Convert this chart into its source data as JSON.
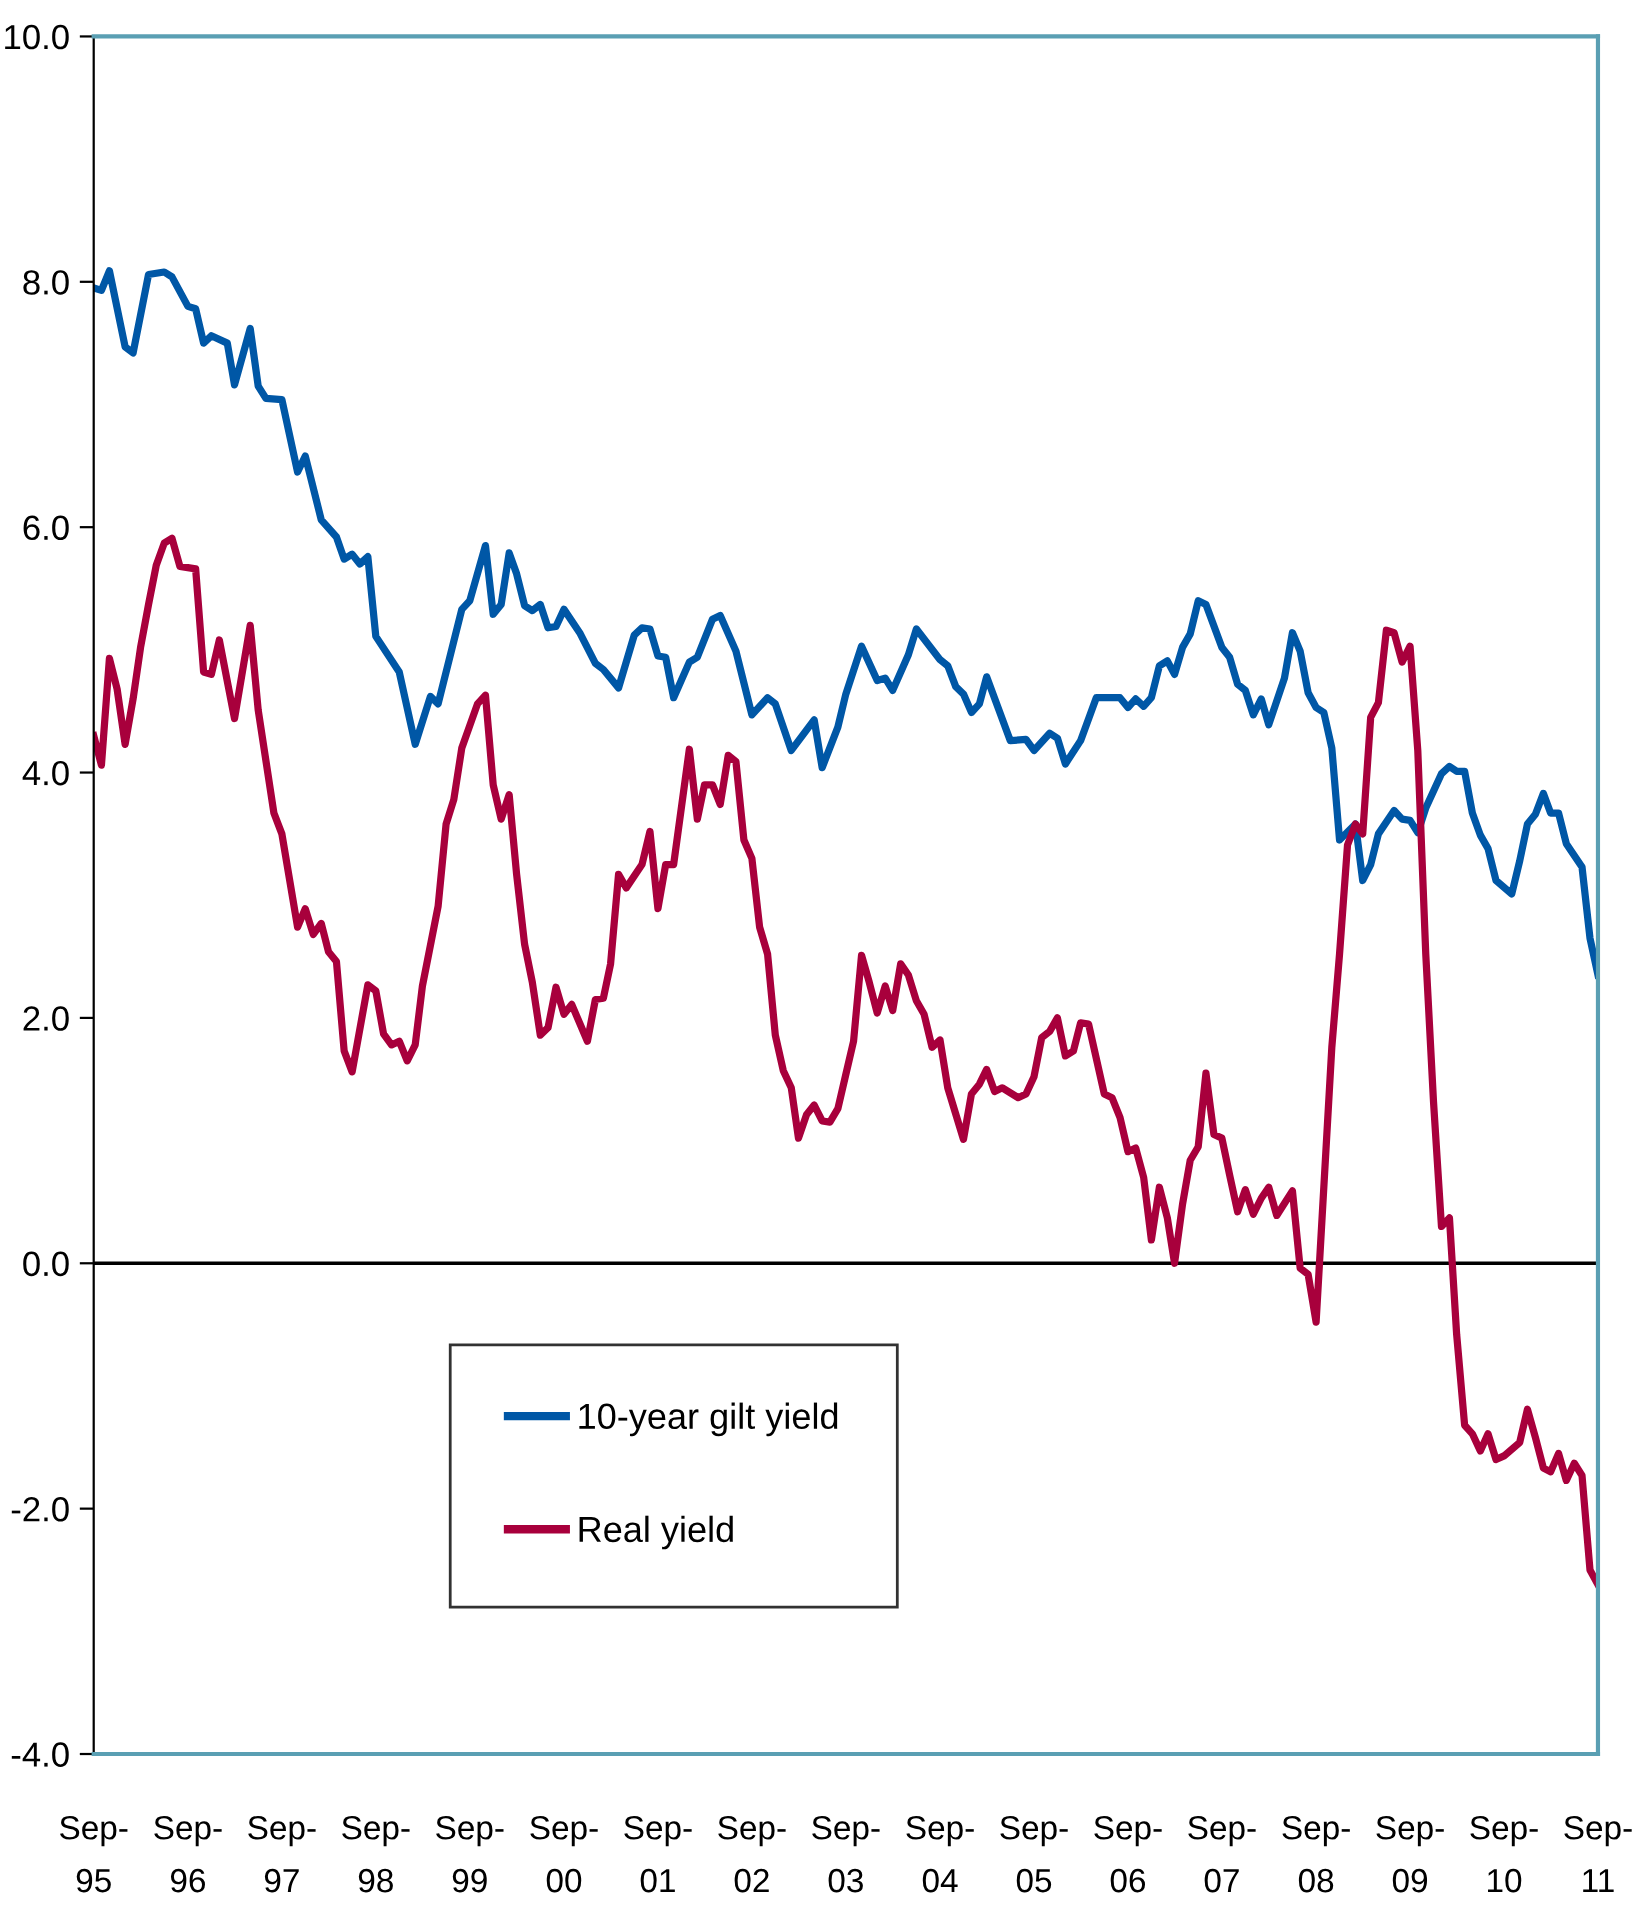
{
  "chart_data": {
    "type": "line",
    "series": [
      {
        "name": "10-year gilt yield",
        "color": "#0057a6",
        "x": [
          "1995-09",
          "1995-10",
          "1995-11",
          "1996-01",
          "1996-02",
          "1996-04",
          "1996-06",
          "1996-07",
          "1996-09",
          "1996-10",
          "1996-11",
          "1996-12",
          "1997-02",
          "1997-03",
          "1997-05",
          "1997-06",
          "1997-07",
          "1997-09",
          "1997-11",
          "1997-12",
          "1998-02",
          "1998-04",
          "1998-05",
          "1998-06",
          "1998-07",
          "1998-08",
          "1998-09",
          "1998-12",
          "1999-02",
          "1999-04",
          "1999-05",
          "1999-08",
          "1999-09",
          "1999-11",
          "1999-12",
          "2000-01",
          "2000-02",
          "2000-03",
          "2000-04",
          "2000-05",
          "2000-06",
          "2000-07",
          "2000-08",
          "2000-09",
          "2000-11",
          "2001-01",
          "2001-02",
          "2001-04",
          "2001-06",
          "2001-07",
          "2001-08",
          "2001-09",
          "2001-10",
          "2001-11",
          "2002-01",
          "2002-02",
          "2002-04",
          "2002-05",
          "2002-07",
          "2002-09",
          "2002-11",
          "2002-12",
          "2003-02",
          "2003-05",
          "2003-06",
          "2003-08",
          "2003-09",
          "2003-11",
          "2004-01",
          "2004-02",
          "2004-03",
          "2004-05",
          "2004-06",
          "2004-09",
          "2004-10",
          "2004-11",
          "2004-12",
          "2005-01",
          "2005-02",
          "2005-03",
          "2005-06",
          "2005-08",
          "2005-09",
          "2005-11",
          "2005-12",
          "2006-01",
          "2006-03",
          "2006-05",
          "2006-08",
          "2006-09",
          "2006-10",
          "2006-11",
          "2006-12",
          "2007-01",
          "2007-02",
          "2007-03",
          "2007-04",
          "2007-05",
          "2007-06",
          "2007-07",
          "2007-09",
          "2007-10",
          "2007-11",
          "2007-12",
          "2008-01",
          "2008-02",
          "2008-03",
          "2008-05",
          "2008-06",
          "2008-07",
          "2008-08",
          "2008-09",
          "2008-10",
          "2008-11",
          "2008-12",
          "2009-02",
          "2009-03",
          "2009-04",
          "2009-05",
          "2009-07",
          "2009-08",
          "2009-09",
          "2009-10",
          "2009-11",
          "2010-01",
          "2010-02",
          "2010-03",
          "2010-04",
          "2010-05",
          "2010-06",
          "2010-07",
          "2010-08",
          "2010-10",
          "2010-11",
          "2010-12",
          "2011-01",
          "2011-02",
          "2011-03",
          "2011-04",
          "2011-05",
          "2011-07",
          "2011-08",
          "2011-09"
        ],
        "values": [
          7.95,
          7.93,
          8.09,
          7.47,
          7.42,
          8.06,
          8.08,
          8.04,
          7.8,
          7.78,
          7.5,
          7.56,
          7.5,
          7.16,
          7.62,
          7.15,
          7.05,
          7.04,
          6.45,
          6.58,
          6.06,
          5.92,
          5.74,
          5.78,
          5.7,
          5.76,
          5.11,
          4.82,
          4.23,
          4.62,
          4.56,
          5.33,
          5.4,
          5.85,
          5.29,
          5.37,
          5.79,
          5.62,
          5.36,
          5.32,
          5.37,
          5.18,
          5.19,
          5.33,
          5.14,
          4.89,
          4.84,
          4.69,
          5.12,
          5.18,
          5.17,
          4.95,
          4.94,
          4.61,
          4.9,
          4.94,
          5.25,
          5.28,
          4.99,
          4.47,
          4.61,
          4.56,
          4.18,
          4.43,
          4.04,
          4.37,
          4.64,
          5.03,
          4.75,
          4.77,
          4.67,
          4.96,
          5.17,
          4.92,
          4.87,
          4.7,
          4.64,
          4.49,
          4.56,
          4.78,
          4.26,
          4.27,
          4.18,
          4.32,
          4.28,
          4.07,
          4.26,
          4.61,
          4.61,
          4.53,
          4.6,
          4.54,
          4.61,
          4.87,
          4.91,
          4.8,
          5.02,
          5.13,
          5.4,
          5.37,
          5.02,
          4.94,
          4.72,
          4.67,
          4.47,
          4.6,
          4.39,
          4.77,
          5.14,
          4.99,
          4.65,
          4.53,
          4.49,
          4.2,
          3.45,
          3.58,
          3.12,
          3.25,
          3.5,
          3.69,
          3.62,
          3.61,
          3.51,
          3.71,
          3.99,
          4.05,
          4.01,
          4.01,
          3.67,
          3.49,
          3.38,
          3.12,
          3.01,
          3.28,
          3.58,
          3.66,
          3.83,
          3.67,
          3.67,
          3.42,
          3.23,
          2.65,
          2.35
        ]
      },
      {
        "name": "Real yield",
        "color": "#a8003c",
        "x": [
          "1995-09",
          "1995-10",
          "1995-11",
          "1995-12",
          "1996-01",
          "1996-02",
          "1996-03",
          "1996-04",
          "1996-05",
          "1996-06",
          "1996-07",
          "1996-08",
          "1996-10",
          "1996-11",
          "1996-12",
          "1997-01",
          "1997-03",
          "1997-05",
          "1997-06",
          "1997-08",
          "1997-09",
          "1997-11",
          "1997-12",
          "1998-01",
          "1998-02",
          "1998-03",
          "1998-04",
          "1998-05",
          "1998-06",
          "1998-08",
          "1998-09",
          "1998-10",
          "1998-11",
          "1998-12",
          "1999-01",
          "1999-02",
          "1999-03",
          "1999-05",
          "1999-06",
          "1999-07",
          "1999-08",
          "1999-10",
          "1999-11",
          "1999-12",
          "2000-01",
          "2000-02",
          "2000-03",
          "2000-04",
          "2000-05",
          "2000-06",
          "2000-07",
          "2000-08",
          "2000-09",
          "2000-10",
          "2000-12",
          "2001-01",
          "2001-02",
          "2001-03",
          "2001-04",
          "2001-05",
          "2001-07",
          "2001-08",
          "2001-09",
          "2001-10",
          "2001-11",
          "2002-01",
          "2002-02",
          "2002-03",
          "2002-04",
          "2002-05",
          "2002-06",
          "2002-07",
          "2002-08",
          "2002-09",
          "2002-10",
          "2002-11",
          "2002-12",
          "2003-01",
          "2003-02",
          "2003-03",
          "2003-04",
          "2003-05",
          "2003-06",
          "2003-07",
          "2003-08",
          "2003-09",
          "2003-10",
          "2003-11",
          "2003-12",
          "2004-01",
          "2004-02",
          "2004-03",
          "2004-04",
          "2004-05",
          "2004-06",
          "2004-07",
          "2004-08",
          "2004-09",
          "2004-10",
          "2004-12",
          "2005-01",
          "2005-02",
          "2005-03",
          "2005-04",
          "2005-05",
          "2005-07",
          "2005-08",
          "2005-09",
          "2005-10",
          "2005-11",
          "2005-12",
          "2006-01",
          "2006-02",
          "2006-03",
          "2006-04",
          "2006-06",
          "2006-07",
          "2006-08",
          "2006-09",
          "2006-10",
          "2006-11",
          "2006-12",
          "2007-01",
          "2007-02",
          "2007-03",
          "2007-04",
          "2007-05",
          "2007-06",
          "2007-07",
          "2007-08",
          "2007-09",
          "2007-10",
          "2007-11",
          "2007-12",
          "2008-01",
          "2008-02",
          "2008-03",
          "2008-04",
          "2008-06",
          "2008-07",
          "2008-08",
          "2008-09",
          "2008-11",
          "2008-12",
          "2009-01",
          "2009-02",
          "2009-03",
          "2009-04",
          "2009-05",
          "2009-06",
          "2009-07",
          "2009-08",
          "2009-09",
          "2009-10",
          "2009-11",
          "2009-12",
          "2010-01",
          "2010-02",
          "2010-03",
          "2010-04",
          "2010-05",
          "2010-06",
          "2010-07",
          "2010-08",
          "2010-09",
          "2010-11",
          "2010-12",
          "2011-01",
          "2011-02",
          "2011-03",
          "2011-04",
          "2011-05",
          "2011-06",
          "2011-07",
          "2011-08",
          "2011-09"
        ],
        "values": [
          4.3,
          4.06,
          4.93,
          4.68,
          4.23,
          4.6,
          5.02,
          5.37,
          5.69,
          5.87,
          5.91,
          5.68,
          5.66,
          4.82,
          4.8,
          5.08,
          4.44,
          5.2,
          4.51,
          3.67,
          3.5,
          2.74,
          2.89,
          2.68,
          2.77,
          2.54,
          2.46,
          1.73,
          1.56,
          2.27,
          2.22,
          1.87,
          1.78,
          1.81,
          1.65,
          1.78,
          2.26,
          2.91,
          3.58,
          3.78,
          4.2,
          4.56,
          4.63,
          3.9,
          3.62,
          3.82,
          3.17,
          2.6,
          2.29,
          1.86,
          1.92,
          2.25,
          2.03,
          2.11,
          1.81,
          2.15,
          2.16,
          2.44,
          3.17,
          3.06,
          3.25,
          3.52,
          2.89,
          3.25,
          3.25,
          4.19,
          3.62,
          3.9,
          3.9,
          3.74,
          4.14,
          4.09,
          3.45,
          3.3,
          2.74,
          2.52,
          1.86,
          1.57,
          1.43,
          1.02,
          1.21,
          1.29,
          1.16,
          1.15,
          1.26,
          1.54,
          1.81,
          2.51,
          2.29,
          2.04,
          2.26,
          2.06,
          2.44,
          2.35,
          2.14,
          2.03,
          1.76,
          1.82,
          1.43,
          1.01,
          1.38,
          1.46,
          1.58,
          1.4,
          1.43,
          1.35,
          1.38,
          1.52,
          1.84,
          1.89,
          2.0,
          1.69,
          1.73,
          1.96,
          1.95,
          1.38,
          1.35,
          1.19,
          0.91,
          0.94,
          0.7,
          0.19,
          0.62,
          0.37,
          0.0,
          0.48,
          0.84,
          0.95,
          1.55,
          1.05,
          1.02,
          0.72,
          0.42,
          0.6,
          0.4,
          0.53,
          0.62,
          0.39,
          0.59,
          -0.04,
          -0.09,
          -0.48,
          1.76,
          2.52,
          3.41,
          3.58,
          3.5,
          4.45,
          4.57,
          5.16,
          5.14,
          4.9,
          5.03,
          4.18,
          2.52,
          1.32,
          0.3,
          0.37,
          -0.58,
          -1.32,
          -1.39,
          -1.53,
          -1.39,
          -1.6,
          -1.57,
          -1.46,
          -1.19,
          -1.42,
          -1.67,
          -1.7,
          -1.55,
          -1.77,
          -1.63,
          -1.73,
          -2.5,
          -2.62
        ]
      }
    ],
    "xlim": [
      "1995-09",
      "2011-09"
    ],
    "xticks": [
      {
        "value": "1995-09",
        "label": "Sep-\n95"
      },
      {
        "value": "1996-09",
        "label": "Sep-\n96"
      },
      {
        "value": "1997-09",
        "label": "Sep-\n97"
      },
      {
        "value": "1998-09",
        "label": "Sep-\n98"
      },
      {
        "value": "1999-09",
        "label": "Sep-\n99"
      },
      {
        "value": "2000-09",
        "label": "Sep-\n00"
      },
      {
        "value": "2001-09",
        "label": "Sep-\n01"
      },
      {
        "value": "2002-09",
        "label": "Sep-\n02"
      },
      {
        "value": "2003-09",
        "label": "Sep-\n03"
      },
      {
        "value": "2004-09",
        "label": "Sep-\n04"
      },
      {
        "value": "2005-09",
        "label": "Sep-\n05"
      },
      {
        "value": "2006-09",
        "label": "Sep-\n06"
      },
      {
        "value": "2007-09",
        "label": "Sep-\n07"
      },
      {
        "value": "2008-09",
        "label": "Sep-\n08"
      },
      {
        "value": "2009-09",
        "label": "Sep-\n09"
      },
      {
        "value": "2010-09",
        "label": "Sep-\n10"
      },
      {
        "value": "2011-09",
        "label": "Sep-\n11"
      }
    ],
    "ylim": [
      -4,
      10
    ],
    "yticks": [
      {
        "value": -4,
        "label": "-4.0"
      },
      {
        "value": -2,
        "label": "-2.0"
      },
      {
        "value": 0,
        "label": "0.0"
      },
      {
        "value": 2,
        "label": "2.0"
      },
      {
        "value": 4,
        "label": "4.0"
      },
      {
        "value": 6,
        "label": "6.0"
      },
      {
        "value": 8,
        "label": "8.0"
      },
      {
        "value": 10,
        "label": "10.0"
      }
    ],
    "ref_lines": [
      {
        "axis": "y",
        "value": 0,
        "color": "#000000"
      }
    ],
    "legend": "bottom left",
    "marker": "none",
    "line_style": "solid",
    "grid": false
  }
}
